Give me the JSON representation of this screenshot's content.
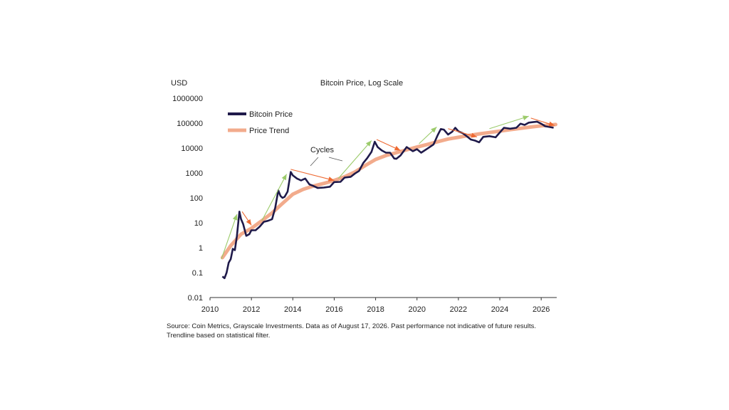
{
  "chart_data": {
    "type": "line",
    "title": "Bitcoin Price, Log Scale",
    "ylabel": "USD",
    "xlabel": "",
    "y_scale": "log",
    "ylim": [
      0.01,
      1000000
    ],
    "xlim": [
      2010,
      2026.75
    ],
    "y_ticks": [
      "0.01",
      "0.1",
      "1",
      "10",
      "100",
      "1000",
      "10000",
      "100000",
      "1000000"
    ],
    "x_ticks": [
      "2010",
      "2012",
      "2014",
      "2016",
      "2018",
      "2020",
      "2022",
      "2024",
      "2026"
    ],
    "grid": false,
    "legend_position": "top-left",
    "annotation": "Cycles",
    "colors": {
      "price": "#1f1a4a",
      "trend": "#f2ab8c",
      "up_arrow": "#9ccb6b",
      "down_arrow": "#ee6a33"
    },
    "series": [
      {
        "name": "Bitcoin Price",
        "x": [
          2010.6,
          2010.7,
          2010.8,
          2010.9,
          2011.0,
          2011.1,
          2011.2,
          2011.3,
          2011.42,
          2011.5,
          2011.6,
          2011.75,
          2011.9,
          2012.0,
          2012.2,
          2012.4,
          2012.6,
          2012.8,
          2013.0,
          2013.15,
          2013.3,
          2013.4,
          2013.5,
          2013.6,
          2013.75,
          2013.9,
          2014.0,
          2014.2,
          2014.4,
          2014.6,
          2014.8,
          2015.0,
          2015.2,
          2015.5,
          2015.8,
          2016.0,
          2016.3,
          2016.5,
          2016.8,
          2017.0,
          2017.2,
          2017.4,
          2017.6,
          2017.8,
          2017.96,
          2018.1,
          2018.3,
          2018.5,
          2018.7,
          2018.9,
          2019.0,
          2019.2,
          2019.5,
          2019.8,
          2020.0,
          2020.2,
          2020.5,
          2020.8,
          2021.0,
          2021.15,
          2021.3,
          2021.5,
          2021.7,
          2021.85,
          2022.0,
          2022.2,
          2022.4,
          2022.6,
          2022.8,
          2023.0,
          2023.2,
          2023.5,
          2023.8,
          2024.0,
          2024.2,
          2024.5,
          2024.8,
          2025.0,
          2025.2,
          2025.4,
          2025.6,
          2025.8,
          2026.0,
          2026.2,
          2026.4,
          2026.6
        ],
        "y": [
          0.07,
          0.06,
          0.1,
          0.25,
          0.35,
          0.9,
          0.8,
          3,
          28,
          14,
          9,
          3,
          3.5,
          5,
          5,
          7,
          11,
          12,
          14,
          40,
          200,
          120,
          100,
          110,
          180,
          1100,
          800,
          600,
          500,
          600,
          350,
          300,
          250,
          260,
          280,
          430,
          440,
          650,
          700,
          950,
          1200,
          2500,
          4000,
          7000,
          18000,
          11000,
          8000,
          6500,
          6500,
          3800,
          3700,
          5000,
          11000,
          7500,
          9000,
          6500,
          9500,
          14000,
          33000,
          58000,
          55000,
          35000,
          45000,
          65000,
          47000,
          40000,
          30000,
          22000,
          20000,
          17000,
          28000,
          30000,
          27000,
          42000,
          65000,
          60000,
          65000,
          95000,
          85000,
          105000,
          110000,
          115000,
          95000,
          75000,
          70000,
          65000
        ]
      },
      {
        "name": "Price Trend",
        "x": [
          2010.6,
          2011.0,
          2011.5,
          2012.0,
          2012.5,
          2013.0,
          2013.5,
          2014.0,
          2014.5,
          2015.0,
          2015.5,
          2016.0,
          2016.5,
          2017.0,
          2017.5,
          2018.0,
          2018.5,
          2019.0,
          2019.5,
          2020.0,
          2020.5,
          2021.0,
          2021.5,
          2022.0,
          2022.5,
          2023.0,
          2023.5,
          2024.0,
          2024.5,
          2025.0,
          2025.5,
          2026.0,
          2026.5,
          2026.7
        ],
        "y": [
          0.4,
          1.2,
          3.5,
          6,
          12,
          25,
          60,
          140,
          220,
          300,
          380,
          500,
          700,
          1100,
          2000,
          3500,
          5000,
          6500,
          8500,
          11000,
          14000,
          18000,
          23000,
          27000,
          32000,
          37000,
          42000,
          48000,
          55000,
          62000,
          70000,
          78000,
          85000,
          88000
        ]
      }
    ]
  },
  "source_lines": [
    "Source: Coin Metrics, Grayscale Investments. Data as of August 17, 2026. Past performance not indicative of future results.",
    "Trendline based on statistical filter."
  ]
}
